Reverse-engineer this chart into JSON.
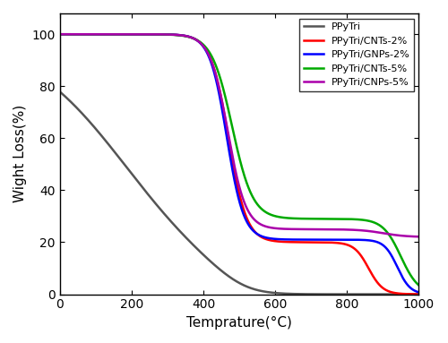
{
  "title": "",
  "xlabel": "Temprature(°C)",
  "ylabel": "Wight Loss(%)",
  "xlim": [
    0,
    1000
  ],
  "ylim": [
    0,
    108
  ],
  "xticks": [
    0,
    200,
    400,
    600,
    800,
    1000
  ],
  "yticks": [
    0,
    20,
    40,
    60,
    80,
    100
  ],
  "legend_labels": [
    "PPyTri",
    "PPyTri/CNTs-2%",
    "PPyTri/GNPs-2%",
    "PPyTri/CNTs-5%",
    "PPyTri/CNPs-5%"
  ],
  "colors": [
    "#555555",
    "#ff0000",
    "#0000ff",
    "#00aa00",
    "#aa00aa"
  ],
  "linewidth": 1.8
}
